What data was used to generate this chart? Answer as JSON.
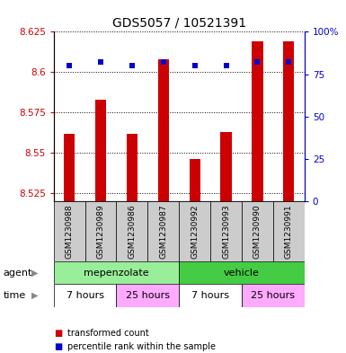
{
  "title": "GDS5057 / 10521391",
  "samples": [
    "GSM1230988",
    "GSM1230989",
    "GSM1230986",
    "GSM1230987",
    "GSM1230992",
    "GSM1230993",
    "GSM1230990",
    "GSM1230991"
  ],
  "transformed_counts": [
    8.562,
    8.583,
    8.562,
    8.608,
    8.546,
    8.563,
    8.619,
    8.619
  ],
  "percentile_ranks": [
    80,
    82,
    80,
    82,
    80,
    80,
    82,
    82
  ],
  "ylim_left": [
    8.52,
    8.625
  ],
  "ylim_right": [
    0,
    100
  ],
  "yticks_left": [
    8.525,
    8.55,
    8.575,
    8.6,
    8.625
  ],
  "yticks_right": [
    0,
    25,
    50,
    75,
    100
  ],
  "ytick_labels_left": [
    "8.525",
    "8.55",
    "8.575",
    "8.6",
    "8.625"
  ],
  "ytick_labels_right": [
    "0",
    "25",
    "50",
    "75",
    "100%"
  ],
  "bar_color": "#cc0000",
  "dot_color": "#0000cc",
  "bar_bottom": 8.52,
  "dot_size": 25,
  "groups_agent": [
    {
      "label": "mepenzolate",
      "start": 0,
      "end": 4,
      "color": "#99ee99"
    },
    {
      "label": "vehicle",
      "start": 4,
      "end": 8,
      "color": "#44cc44"
    }
  ],
  "groups_time": [
    {
      "label": "7 hours",
      "start": 0,
      "end": 2,
      "color": "#ffffff"
    },
    {
      "label": "25 hours",
      "start": 2,
      "end": 4,
      "color": "#ffaaff"
    },
    {
      "label": "7 hours",
      "start": 4,
      "end": 6,
      "color": "#ffffff"
    },
    {
      "label": "25 hours",
      "start": 6,
      "end": 8,
      "color": "#ffaaff"
    }
  ],
  "legend_items": [
    {
      "label": "transformed count",
      "color": "#cc0000"
    },
    {
      "label": "percentile rank within the sample",
      "color": "#0000cc"
    }
  ],
  "left_axis_color": "#cc0000",
  "right_axis_color": "#0000cc",
  "sample_box_color": "#cccccc",
  "agent_label": "agent",
  "time_label": "time"
}
